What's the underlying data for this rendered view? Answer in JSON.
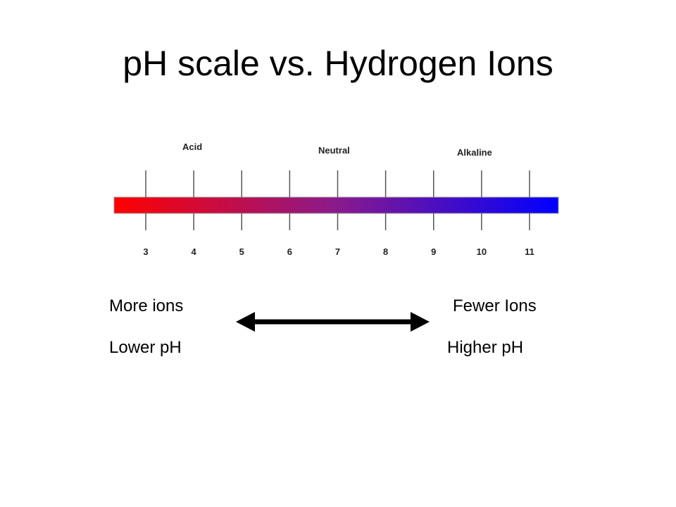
{
  "title": "pH scale vs. Hydrogen Ions",
  "scale": {
    "zones": [
      {
        "name": "acid",
        "label": "Acid"
      },
      {
        "name": "neutral",
        "label": "Neutral"
      },
      {
        "name": "alkaline",
        "label": "Alkaline"
      }
    ],
    "ticks": [
      "3",
      "4",
      "5",
      "6",
      "7",
      "8",
      "9",
      "10",
      "11"
    ],
    "gradient": {
      "from": "#ff0000",
      "middle": "#8a1a8c",
      "to": "#0000ff"
    }
  },
  "captions": {
    "left_top": "More ions",
    "left_bottom": "Lower pH",
    "right_top": "Fewer Ions",
    "right_bottom": "Higher pH"
  },
  "arrow": {
    "icon": "double-headed-arrow-icon",
    "color": "#000000"
  }
}
